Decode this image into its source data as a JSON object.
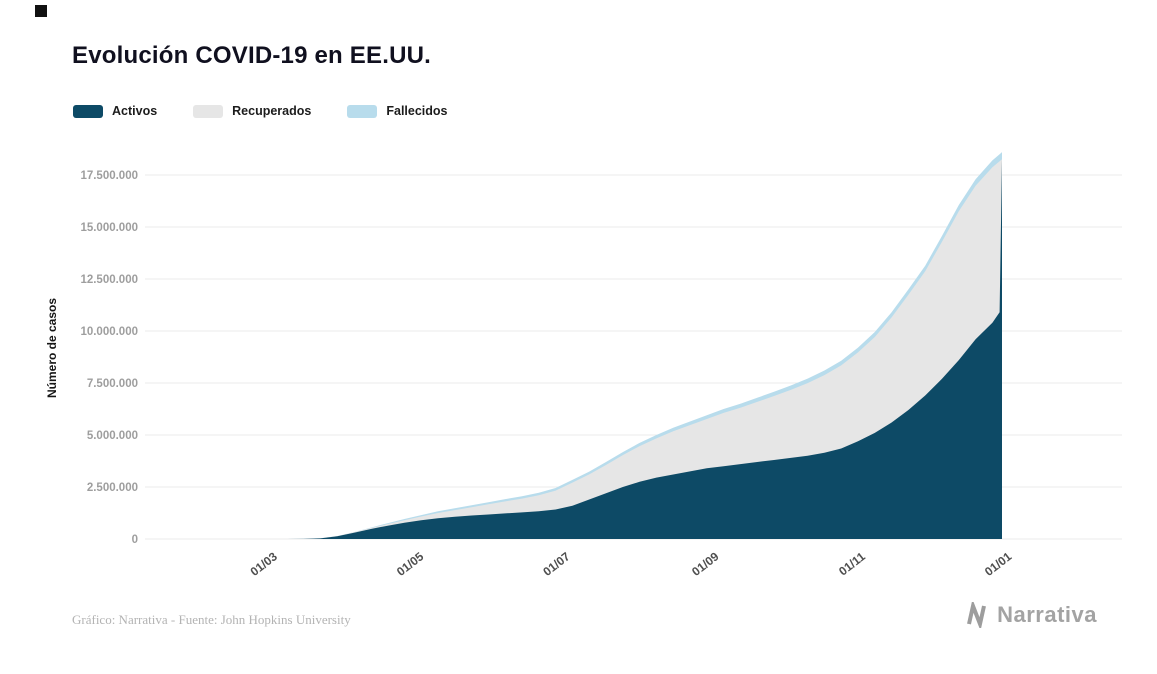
{
  "page": {
    "title": "Evolución COVID-19 en EE.UU.",
    "footer_credit": "Gráfico: Narrativa - Fuente: John Hopkins University",
    "brand": "Narrativa"
  },
  "legend": [
    {
      "label": "Activos",
      "color": "#0d4a66"
    },
    {
      "label": "Recuperados",
      "color": "#e6e6e6"
    },
    {
      "label": "Fallecidos",
      "color": "#b8dcec"
    }
  ],
  "chart_data": {
    "type": "area",
    "stacked": true,
    "title": "Evolución COVID-19 en EE.UU.",
    "xlabel": "",
    "ylabel": "Número de casos",
    "grid": true,
    "legend_position": "top-left",
    "ylim": [
      0,
      18700000
    ],
    "x_epoch": "2020-03-01",
    "y_ticks": [
      {
        "label": "0",
        "value": 0
      },
      {
        "label": "2.500.000",
        "value": 2500000
      },
      {
        "label": "5.000.000",
        "value": 5000000
      },
      {
        "label": "7.500.000",
        "value": 7500000
      },
      {
        "label": "10.000.000",
        "value": 10000000
      },
      {
        "label": "12.500.000",
        "value": 12500000
      },
      {
        "label": "15.000.000",
        "value": 15000000
      },
      {
        "label": "17.500.000",
        "value": 17500000
      }
    ],
    "x_ticks": [
      {
        "label": "01/03",
        "date": "2020-03-01"
      },
      {
        "label": "01/05",
        "date": "2020-05-01"
      },
      {
        "label": "01/07",
        "date": "2020-07-01"
      },
      {
        "label": "01/09",
        "date": "2020-09-01"
      },
      {
        "label": "01/11",
        "date": "2020-11-01"
      },
      {
        "label": "01/01",
        "date": "2021-01-01"
      }
    ],
    "dates": [
      "2020-03-01",
      "2020-03-08",
      "2020-03-15",
      "2020-03-22",
      "2020-03-29",
      "2020-04-05",
      "2020-04-12",
      "2020-04-19",
      "2020-04-26",
      "2020-05-03",
      "2020-05-10",
      "2020-05-17",
      "2020-05-24",
      "2020-05-31",
      "2020-06-07",
      "2020-06-14",
      "2020-06-21",
      "2020-06-28",
      "2020-07-05",
      "2020-07-12",
      "2020-07-19",
      "2020-07-26",
      "2020-08-02",
      "2020-08-09",
      "2020-08-16",
      "2020-08-23",
      "2020-08-30",
      "2020-09-06",
      "2020-09-13",
      "2020-09-20",
      "2020-09-27",
      "2020-10-04",
      "2020-10-11",
      "2020-10-18",
      "2020-10-25",
      "2020-11-01",
      "2020-11-08",
      "2020-11-15",
      "2020-11-22",
      "2020-11-29",
      "2020-12-06",
      "2020-12-13",
      "2020-12-20",
      "2020-12-27",
      "2020-12-30",
      "2020-12-31"
    ],
    "series": [
      {
        "name": "Activos",
        "color": "#0d4a66",
        "values": [
          80,
          500,
          3300,
          31000,
          132000,
          300000,
          480000,
          640000,
          780000,
          900000,
          1000000,
          1070000,
          1130000,
          1180000,
          1230000,
          1280000,
          1330000,
          1420000,
          1600000,
          1900000,
          2200000,
          2500000,
          2750000,
          2950000,
          3100000,
          3250000,
          3400000,
          3500000,
          3600000,
          3700000,
          3800000,
          3900000,
          4000000,
          4150000,
          4350000,
          4700000,
          5100000,
          5600000,
          6200000,
          6900000,
          7700000,
          8600000,
          9600000,
          10400000,
          10900000,
          18260000
        ]
      },
      {
        "name": "Recuperados",
        "color": "#e6e6e6",
        "values": [
          15,
          28,
          140,
          1600,
          5500,
          20500,
          48000,
          80000,
          125000,
          182000,
          250000,
          320000,
          392000,
          486000,
          580000,
          664000,
          770000,
          905000,
          1110000,
          1205000,
          1360000,
          1533000,
          1715000,
          1888000,
          2080000,
          2224000,
          2367000,
          2561000,
          2706000,
          2891000,
          3075000,
          3270000,
          3495000,
          3730000,
          3995000,
          4269000,
          4612000,
          5054000,
          5544000,
          5973000,
          6589000,
          7162000,
          7383000,
          7470000,
          7264000,
          0
        ]
      },
      {
        "name": "Fallecidos",
        "color": "#b8dcec",
        "values": [
          5,
          22,
          60,
          400,
          2500,
          9500,
          22000,
          40000,
          55000,
          68000,
          80000,
          90000,
          98000,
          104000,
          110000,
          116000,
          120000,
          125000,
          130000,
          135000,
          140000,
          147000,
          155000,
          162000,
          170000,
          176000,
          183000,
          189000,
          194000,
          199000,
          205000,
          210000,
          215000,
          220000,
          225000,
          231000,
          238000,
          246000,
          256000,
          267000,
          281000,
          298000,
          317000,
          330000,
          336000,
          340000
        ]
      }
    ]
  }
}
